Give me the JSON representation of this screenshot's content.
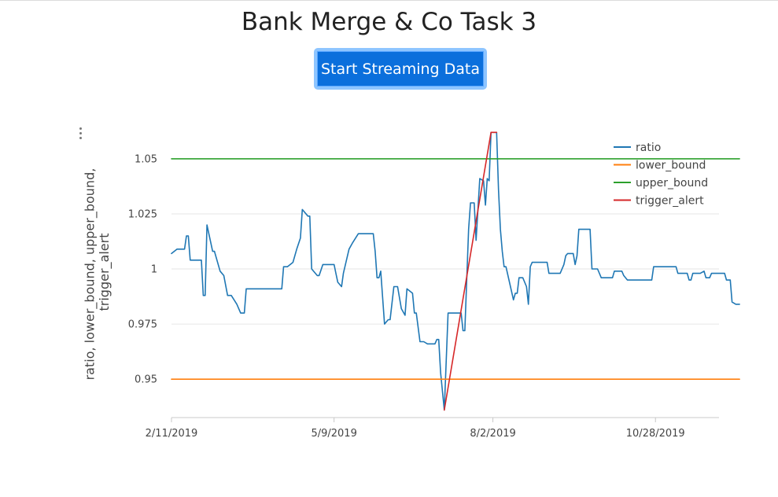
{
  "header": {
    "title": "Bank Merge & Co Task 3"
  },
  "controls": {
    "stream_button_label": "Start Streaming Data"
  },
  "chart_data": {
    "type": "line",
    "xlabel": "",
    "ylabel_lines": [
      "ratio, lower_bound, upper_bound,",
      "trigger_alert"
    ],
    "y_ticks": [
      0.95,
      0.975,
      1,
      1.025,
      1.05
    ],
    "y_tick_labels": [
      "0.95",
      "0.975",
      "1",
      "1.025",
      "1.05"
    ],
    "ylim": [
      0.9365,
      1.0621
    ],
    "x_ticks": [
      "2019-02-11",
      "2019-05-09",
      "2019-08-02",
      "2019-10-28"
    ],
    "x_tick_labels": [
      "2/11/2019",
      "5/9/2019",
      "8/2/2019",
      "10/28/2019"
    ],
    "xlim": [
      "2019-02-11",
      "2019-12-01"
    ],
    "grid": true,
    "legend_position": "top-right",
    "series": [
      {
        "name": "ratio",
        "color": "#1f77b4",
        "points": [
          [
            "2019-02-11",
            1.007
          ],
          [
            "2019-02-14",
            1.009
          ],
          [
            "2019-02-18",
            1.009
          ],
          [
            "2019-02-19",
            1.015
          ],
          [
            "2019-02-20",
            1.015
          ],
          [
            "2019-02-21",
            1.004
          ],
          [
            "2019-02-27",
            1.004
          ],
          [
            "2019-02-28",
            0.988
          ],
          [
            "2019-03-01",
            0.988
          ],
          [
            "2019-03-02",
            1.02
          ],
          [
            "2019-03-05",
            1.008
          ],
          [
            "2019-03-06",
            1.008
          ],
          [
            "2019-03-09",
            0.999
          ],
          [
            "2019-03-11",
            0.997
          ],
          [
            "2019-03-13",
            0.988
          ],
          [
            "2019-03-15",
            0.988
          ],
          [
            "2019-03-18",
            0.984
          ],
          [
            "2019-03-20",
            0.98
          ],
          [
            "2019-03-22",
            0.98
          ],
          [
            "2019-03-23",
            0.991
          ],
          [
            "2019-04-11",
            0.991
          ],
          [
            "2019-04-12",
            1.001
          ],
          [
            "2019-04-14",
            1.001
          ],
          [
            "2019-04-17",
            1.003
          ],
          [
            "2019-04-19",
            1.009
          ],
          [
            "2019-04-21",
            1.014
          ],
          [
            "2019-04-22",
            1.027
          ],
          [
            "2019-04-25",
            1.024
          ],
          [
            "2019-04-26",
            1.024
          ],
          [
            "2019-04-27",
            1.0
          ],
          [
            "2019-04-30",
            0.997
          ],
          [
            "2019-05-01",
            0.997
          ],
          [
            "2019-05-03",
            1.002
          ],
          [
            "2019-05-09",
            1.002
          ],
          [
            "2019-05-10",
            0.998
          ],
          [
            "2019-05-11",
            0.994
          ],
          [
            "2019-05-13",
            0.992
          ],
          [
            "2019-05-14",
            0.998
          ],
          [
            "2019-05-17",
            1.009
          ],
          [
            "2019-05-19",
            1.012
          ],
          [
            "2019-05-22",
            1.016
          ],
          [
            "2019-05-30",
            1.016
          ],
          [
            "2019-05-31",
            1.008
          ],
          [
            "2019-06-01",
            0.996
          ],
          [
            "2019-06-02",
            0.996
          ],
          [
            "2019-06-03",
            0.999
          ],
          [
            "2019-06-05",
            0.975
          ],
          [
            "2019-06-07",
            0.977
          ],
          [
            "2019-06-08",
            0.977
          ],
          [
            "2019-06-10",
            0.992
          ],
          [
            "2019-06-12",
            0.992
          ],
          [
            "2019-06-14",
            0.982
          ],
          [
            "2019-06-16",
            0.979
          ],
          [
            "2019-06-17",
            0.991
          ],
          [
            "2019-06-20",
            0.989
          ],
          [
            "2019-06-21",
            0.98
          ],
          [
            "2019-06-22",
            0.98
          ],
          [
            "2019-06-24",
            0.967
          ],
          [
            "2019-06-26",
            0.967
          ],
          [
            "2019-06-28",
            0.966
          ],
          [
            "2019-07-02",
            0.966
          ],
          [
            "2019-07-03",
            0.968
          ],
          [
            "2019-07-04",
            0.968
          ],
          [
            "2019-07-05",
            0.953
          ],
          [
            "2019-07-07",
            0.936
          ],
          [
            "2019-07-09",
            0.98
          ],
          [
            "2019-07-16",
            0.98
          ],
          [
            "2019-07-17",
            0.972
          ],
          [
            "2019-07-18",
            0.972
          ],
          [
            "2019-07-20",
            1.018
          ],
          [
            "2019-07-21",
            1.03
          ],
          [
            "2019-07-23",
            1.03
          ],
          [
            "2019-07-24",
            1.013
          ],
          [
            "2019-07-26",
            1.041
          ],
          [
            "2019-07-28",
            1.04
          ],
          [
            "2019-07-29",
            1.029
          ],
          [
            "2019-07-30",
            1.041
          ],
          [
            "2019-07-31",
            1.04
          ],
          [
            "2019-08-01",
            1.062
          ],
          [
            "2019-08-04",
            1.062
          ],
          [
            "2019-08-05",
            1.036
          ],
          [
            "2019-08-06",
            1.018
          ],
          [
            "2019-08-07",
            1.008
          ],
          [
            "2019-08-08",
            1.001
          ],
          [
            "2019-08-09",
            1.001
          ],
          [
            "2019-08-13",
            0.986
          ],
          [
            "2019-08-14",
            0.989
          ],
          [
            "2019-08-15",
            0.989
          ],
          [
            "2019-08-16",
            0.996
          ],
          [
            "2019-08-18",
            0.996
          ],
          [
            "2019-08-20",
            0.992
          ],
          [
            "2019-08-21",
            0.984
          ],
          [
            "2019-08-22",
            1.001
          ],
          [
            "2019-08-23",
            1.003
          ],
          [
            "2019-08-31",
            1.003
          ],
          [
            "2019-09-01",
            0.998
          ],
          [
            "2019-09-07",
            0.998
          ],
          [
            "2019-09-09",
            1.002
          ],
          [
            "2019-09-10",
            1.006
          ],
          [
            "2019-09-11",
            1.007
          ],
          [
            "2019-09-14",
            1.007
          ],
          [
            "2019-09-15",
            1.002
          ],
          [
            "2019-09-16",
            1.006
          ],
          [
            "2019-09-17",
            1.018
          ],
          [
            "2019-09-23",
            1.018
          ],
          [
            "2019-09-24",
            1.0
          ],
          [
            "2019-09-27",
            1.0
          ],
          [
            "2019-09-29",
            0.996
          ],
          [
            "2019-10-05",
            0.996
          ],
          [
            "2019-10-06",
            0.999
          ],
          [
            "2019-10-10",
            0.999
          ],
          [
            "2019-10-11",
            0.997
          ],
          [
            "2019-10-13",
            0.995
          ],
          [
            "2019-10-26",
            0.995
          ],
          [
            "2019-10-27",
            1.001
          ],
          [
            "2019-11-08",
            1.001
          ],
          [
            "2019-11-09",
            0.998
          ],
          [
            "2019-11-14",
            0.998
          ],
          [
            "2019-11-15",
            0.995
          ],
          [
            "2019-11-16",
            0.995
          ],
          [
            "2019-11-17",
            0.998
          ],
          [
            "2019-11-21",
            0.998
          ],
          [
            "2019-11-23",
            0.999
          ],
          [
            "2019-11-24",
            0.996
          ],
          [
            "2019-11-26",
            0.996
          ],
          [
            "2019-11-27",
            0.998
          ],
          [
            "2019-12-04",
            0.998
          ],
          [
            "2019-12-05",
            0.995
          ],
          [
            "2019-12-07",
            0.995
          ],
          [
            "2019-12-08",
            0.985
          ],
          [
            "2019-12-10",
            0.984
          ],
          [
            "2019-12-12",
            0.984
          ]
        ]
      },
      {
        "name": "lower_bound",
        "color": "#ff7f0e",
        "points": [
          [
            "2019-02-11",
            0.95
          ],
          [
            "2019-12-12",
            0.95
          ]
        ]
      },
      {
        "name": "upper_bound",
        "color": "#2ca02c",
        "points": [
          [
            "2019-02-11",
            1.05
          ],
          [
            "2019-12-12",
            1.05
          ]
        ]
      },
      {
        "name": "trigger_alert",
        "color": "#d62728",
        "points": [
          [
            "2019-07-07",
            0.936
          ],
          [
            "2019-08-01",
            1.062
          ],
          [
            "2019-08-04",
            1.062
          ]
        ]
      }
    ]
  }
}
